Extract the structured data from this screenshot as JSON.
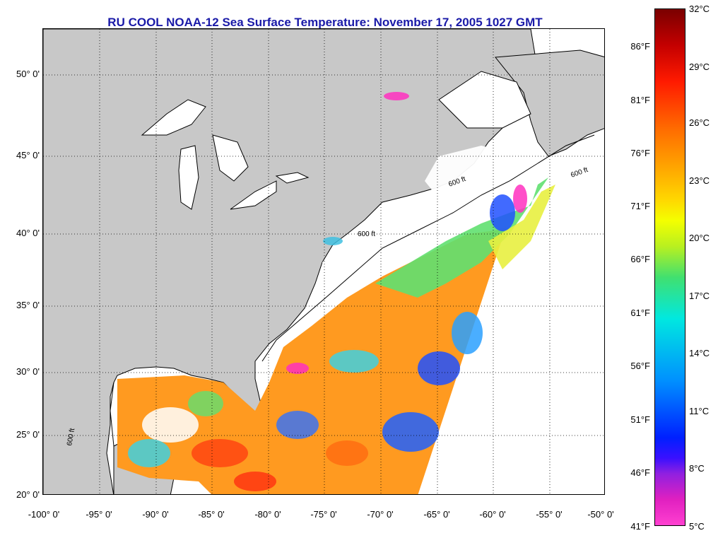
{
  "title": "RU COOL  NOAA-12  Sea Surface Temperature:  November 17, 2005 1027 GMT",
  "map": {
    "lat_labels": [
      "50° 0'",
      "45° 0'",
      "40° 0'",
      "35° 0'",
      "30° 0'",
      "25° 0'",
      "20° 0'"
    ],
    "lon_labels": [
      "-100° 0'",
      "-95° 0'",
      "-90° 0'",
      "-85° 0'",
      "-80° 0'",
      "-75° 0'",
      "-70° 0'",
      "-65° 0'",
      "-60° 0'",
      "-55° 0'",
      "-50° 0'"
    ],
    "contour_label": "600 ft",
    "land_color": "#c8c8c8",
    "cloud_color": "#ffffff"
  },
  "colorbar": {
    "celsius": [
      "32°C",
      "29°C",
      "26°C",
      "23°C",
      "20°C",
      "17°C",
      "14°C",
      "11°C",
      "8°C",
      "5°C"
    ],
    "fahrenheit": [
      "86°F",
      "81°F",
      "76°F",
      "71°F",
      "66°F",
      "61°F",
      "56°F",
      "51°F",
      "46°F",
      "41°F"
    ]
  }
}
